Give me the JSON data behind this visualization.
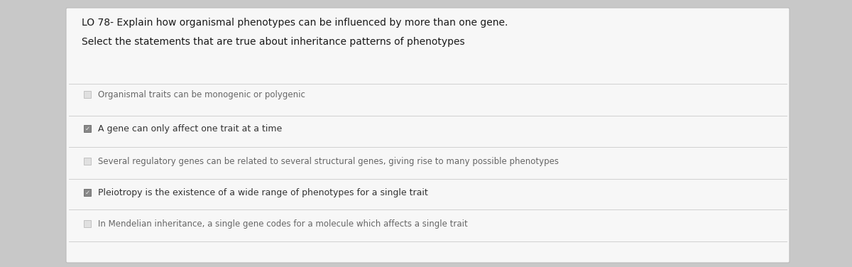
{
  "title_line1": "LO 78- Explain how organismal phenotypes can be influenced by more than one gene.",
  "title_line2": "Select the statements that are true about inheritance patterns of phenotypes",
  "outer_bg_color": "#c8c8c8",
  "inner_bg_color": "#f0f0f0",
  "card_bg_color": "#f7f7f7",
  "items": [
    {
      "text": "Organismal traits can be monogenic or polygenic",
      "checked": false
    },
    {
      "text": "A gene can only affect one trait at a time",
      "checked": true
    },
    {
      "text": "Several regulatory genes can be related to several structural genes, giving rise to many possible phenotypes",
      "checked": false
    },
    {
      "text": "Pleiotropy is the existence of a wide range of phenotypes for a single trait",
      "checked": true
    },
    {
      "text": "In Mendelian inheritance, a single gene codes for a molecule which affects a single trait",
      "checked": false
    }
  ],
  "title_fontsize": 10.0,
  "item_fontsize": 8.5,
  "text_color_title": "#1a1a1a",
  "text_color_checked": "#333333",
  "text_color_unchecked": "#666666",
  "checkbox_unchecked_fill": "#e0e0e0",
  "checkbox_unchecked_edge": "#bbbbbb",
  "checkbox_checked_fill": "#888888",
  "checkbox_checked_edge": "#666666",
  "divider_color": "#d0d0d0",
  "card_edge_color": "#bbbbbb"
}
